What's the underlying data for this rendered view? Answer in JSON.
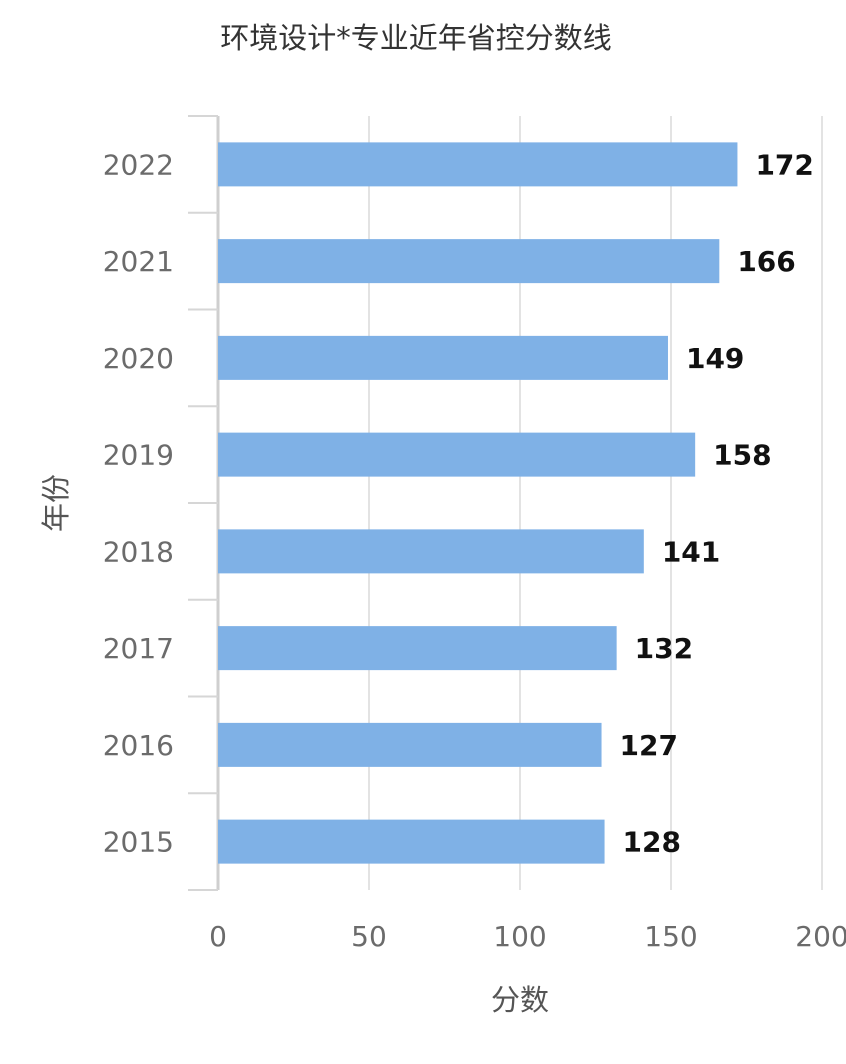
{
  "chart_data": {
    "type": "bar",
    "orientation": "horizontal",
    "title": "环境设计*专业近年省控分数线",
    "xlabel": "分数",
    "ylabel": "年份",
    "categories": [
      "2022",
      "2021",
      "2020",
      "2019",
      "2018",
      "2017",
      "2016",
      "2015"
    ],
    "values": [
      172,
      166,
      149,
      158,
      141,
      132,
      127,
      128
    ],
    "data_labels": [
      "172",
      "166",
      "149",
      "158",
      "141",
      "132",
      "127",
      "128"
    ],
    "xlim": [
      0,
      200
    ],
    "x_ticks": [
      0,
      50,
      100,
      150,
      200
    ],
    "x_tick_labels": [
      "0",
      "50",
      "100",
      "150",
      "200"
    ],
    "grid": "vertical",
    "legend": "none",
    "bar_color": "#7fb1e6",
    "grid_color": "#e3e3e3"
  }
}
